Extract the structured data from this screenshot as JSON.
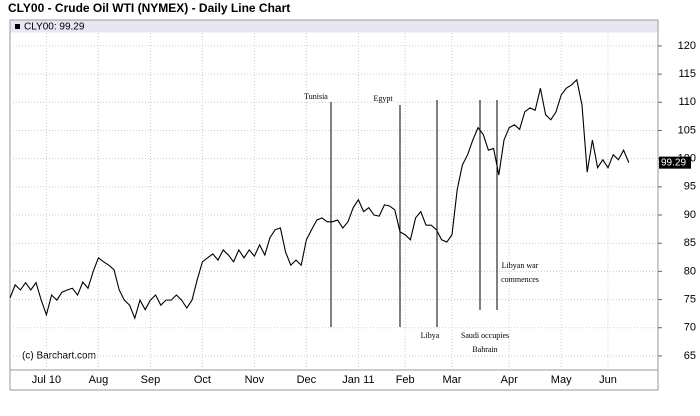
{
  "chart_data": {
    "type": "line",
    "title": "CLY00 - Crude Oil WTI (NYMEX) - Daily Line Chart",
    "legend": "CLY00: 99.29",
    "credit": "(c) Barchart.com",
    "categories": [
      null,
      null,
      null,
      null,
      null,
      null,
      null,
      "Jul 10",
      null,
      null,
      null,
      null,
      null,
      null,
      null,
      null,
      null,
      "Aug",
      null,
      null,
      null,
      null,
      null,
      null,
      null,
      null,
      null,
      "Sep",
      null,
      null,
      null,
      null,
      null,
      null,
      null,
      null,
      null,
      "Oct",
      null,
      null,
      null,
      null,
      null,
      null,
      null,
      null,
      null,
      "Nov",
      null,
      null,
      null,
      null,
      null,
      null,
      null,
      null,
      null,
      "Dec",
      null,
      null,
      null,
      null,
      null,
      null,
      null,
      null,
      null,
      "Jan 11",
      null,
      null,
      null,
      null,
      null,
      null,
      null,
      null,
      "Feb",
      null,
      null,
      null,
      null,
      null,
      null,
      null,
      null,
      "Mar",
      null,
      null,
      null,
      null,
      null,
      null,
      null,
      null,
      null,
      null,
      "Apr",
      null,
      null,
      null,
      null,
      null,
      null,
      null,
      null,
      null,
      "May",
      null,
      null,
      null,
      null,
      null,
      null,
      null,
      null,
      "Jun",
      null,
      null,
      null,
      null
    ],
    "series": [
      {
        "name": "CLY00",
        "color": "#000000",
        "values": [
          75.3,
          77.6,
          76.7,
          78,
          76.7,
          78,
          74.9,
          72.3,
          75.8,
          74.9,
          76.3,
          76.7,
          77,
          75.8,
          78.1,
          77,
          80,
          82.4,
          81.7,
          81.1,
          80.3,
          76.7,
          74.9,
          74,
          71.7,
          74.9,
          73.2,
          74.9,
          75.8,
          74,
          74.9,
          74.9,
          75.8,
          74.9,
          73.5,
          74.9,
          78.5,
          81.7,
          82.4,
          83.1,
          82,
          83.8,
          82.9,
          81.7,
          83.8,
          82.4,
          83.8,
          82.7,
          84.7,
          82.9,
          86,
          87.4,
          87.7,
          83.4,
          81.1,
          82,
          81.1,
          85.6,
          87.4,
          89.1,
          89.5,
          88.8,
          88.8,
          89.1,
          87.7,
          88.8,
          91.3,
          92.7,
          90.6,
          91.3,
          90,
          89.8,
          91.8,
          91.6,
          90.9,
          87,
          86.5,
          85.6,
          89.5,
          90.6,
          88.2,
          88.2,
          87.4,
          85.6,
          85.2,
          86.5,
          94.5,
          98.9,
          100.7,
          103.3,
          105.5,
          104.3,
          101.5,
          101.8,
          97.1,
          103.3,
          105.5,
          106,
          105.2,
          108.3,
          109,
          108.6,
          112.5,
          107.8,
          106.9,
          108.3,
          111.3,
          112.5,
          113.1,
          114,
          109.5,
          97.6,
          103.3,
          98.4,
          99.8,
          98.4,
          100.7,
          99.8,
          101.5,
          99.29
        ]
      }
    ],
    "annotations": [
      [
        "Tunisia"
      ],
      [
        "Egypt"
      ],
      [
        "Libya"
      ],
      [
        "Saudi occupies",
        "Bahrain"
      ],
      [
        "Libyan war",
        "commences"
      ]
    ],
    "ylim": [
      62.5,
      124.6
    ],
    "yticks": [
      65,
      70,
      75,
      80,
      85,
      90,
      95,
      100,
      105,
      110,
      115,
      120
    ],
    "grid": true
  }
}
